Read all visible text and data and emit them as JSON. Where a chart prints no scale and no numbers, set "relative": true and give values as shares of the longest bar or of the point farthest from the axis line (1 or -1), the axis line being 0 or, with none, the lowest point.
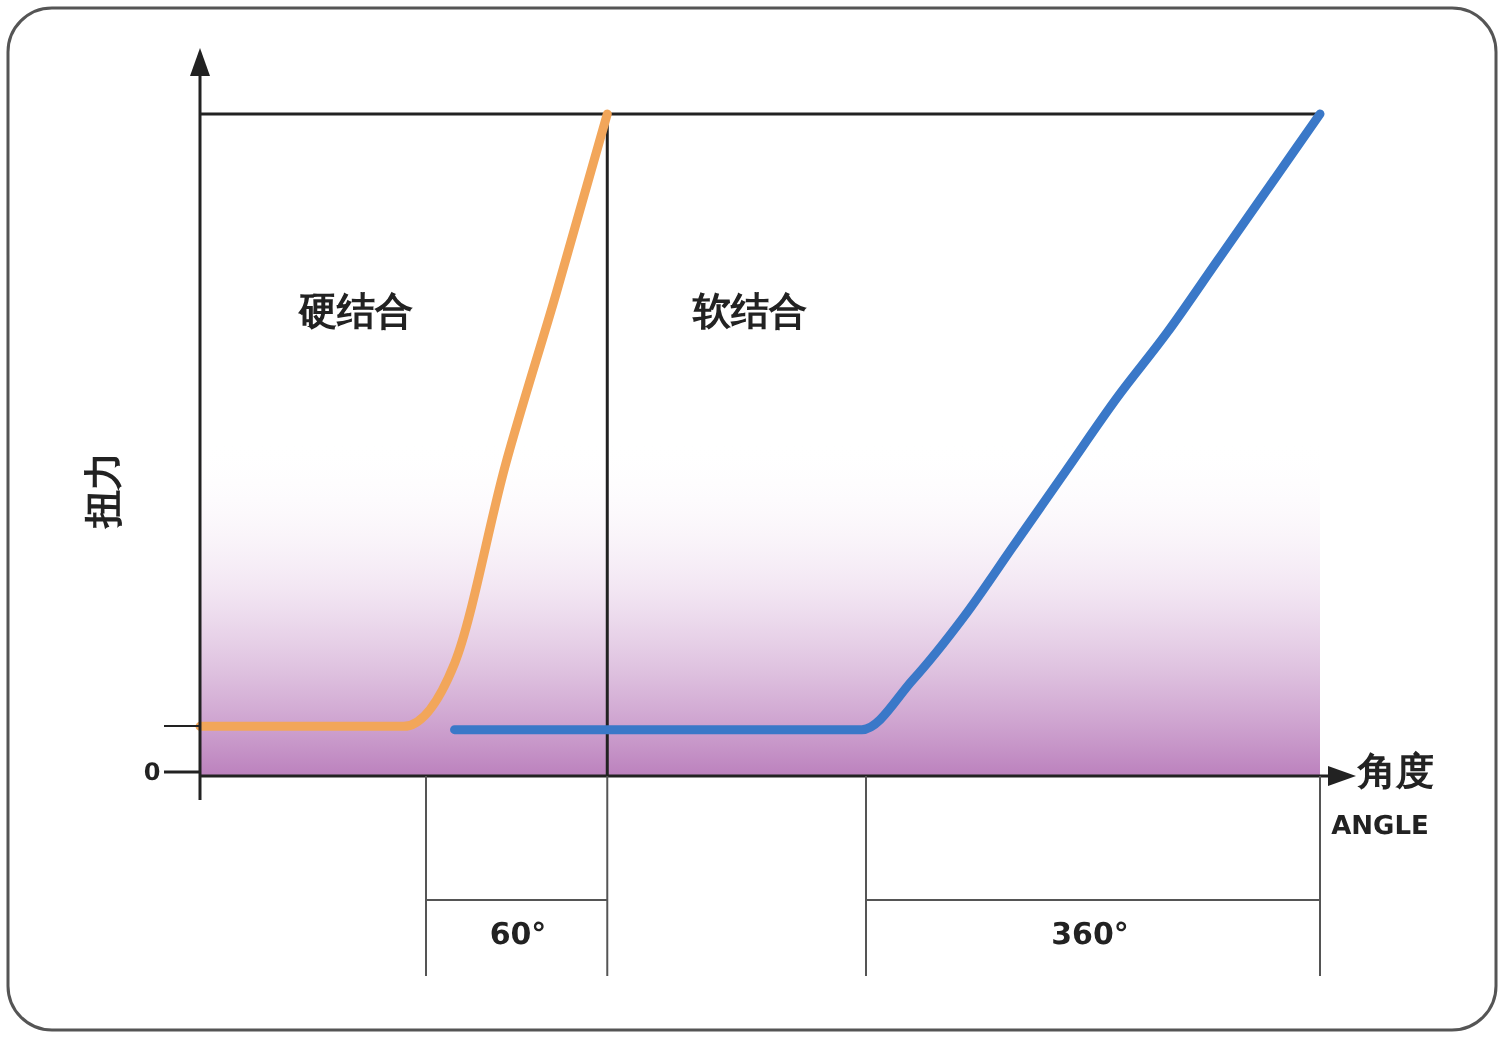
{
  "chart_data": {
    "type": "line",
    "relative": true,
    "xlabel": "角度",
    "ylabel": "扭力",
    "categories": [
      null,
      null,
      null,
      null,
      null,
      null,
      null,
      null,
      null,
      null,
      null,
      null,
      null,
      null,
      null,
      null,
      null,
      null,
      null,
      null,
      null,
      null,
      null
    ],
    "series": [
      {
        "color": "#f2a65a",
        "values": [
          0.075,
          0.075,
          0.075,
          0.075,
          0.075,
          0.17,
          0.47,
          0.73,
          1.0,
          null,
          null,
          null,
          null,
          null,
          null,
          null,
          null,
          null,
          null,
          null,
          null,
          null,
          null
        ]
      },
      {
        "color": "#3a78c8",
        "values": [
          null,
          null,
          null,
          null,
          null,
          0.07,
          0.07,
          0.07,
          0.07,
          0.07,
          0.07,
          0.07,
          0.07,
          0.07,
          0.145,
          0.24,
          0.35,
          0.46,
          0.57,
          0.67,
          0.78,
          0.89,
          1.0
        ]
      }
    ],
    "annotations": [
      "硬结合",
      "软结合",
      "60°",
      "360°",
      "ANGLE",
      "0"
    ],
    "grid": false,
    "marker": "none",
    "line_style": "solid"
  }
}
